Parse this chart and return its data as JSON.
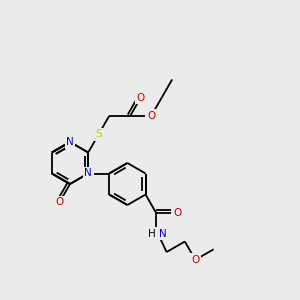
{
  "bg_color": "#ebebeb",
  "atom_colors": {
    "C": "#000000",
    "N": "#0000cc",
    "O": "#cc0000",
    "S": "#cccc00",
    "H": "#000000"
  },
  "bond_color": "#000000",
  "font_size": 7.5,
  "lw": 1.3,
  "fig_size": [
    3.0,
    3.0
  ],
  "dpi": 100
}
